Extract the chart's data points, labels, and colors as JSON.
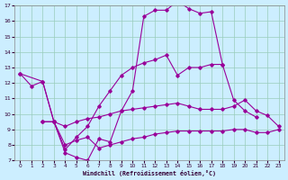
{
  "xlabel": "Windchill (Refroidissement éolien,°C)",
  "bg_color": "#cceeff",
  "grid_color": "#99ccbb",
  "line_color": "#990099",
  "xlim": [
    -0.5,
    23.5
  ],
  "ylim": [
    7,
    17
  ],
  "xticks": [
    0,
    1,
    2,
    3,
    4,
    5,
    6,
    7,
    8,
    9,
    10,
    11,
    12,
    13,
    14,
    15,
    16,
    17,
    18,
    19,
    20,
    21,
    22,
    23
  ],
  "yticks": [
    7,
    8,
    9,
    10,
    11,
    12,
    13,
    14,
    15,
    16,
    17
  ],
  "line1_x": [
    0,
    1,
    2,
    3,
    4,
    5,
    6,
    7,
    8,
    9,
    10,
    11,
    12,
    13,
    14,
    15,
    16,
    17,
    18,
    19,
    20,
    21
  ],
  "line1_y": [
    12.6,
    11.8,
    12.1,
    9.5,
    7.5,
    7.2,
    7.0,
    8.4,
    8.2,
    10.2,
    11.5,
    16.3,
    16.7,
    16.7,
    17.3,
    16.8,
    16.5,
    16.6,
    13.2,
    10.9,
    10.2,
    9.8
  ],
  "line2_x": [
    0,
    2,
    3,
    4,
    5,
    6,
    7,
    8,
    9,
    10,
    11,
    12,
    13,
    14,
    15,
    16,
    17,
    18
  ],
  "line2_y": [
    12.6,
    12.1,
    9.5,
    7.7,
    8.5,
    9.2,
    10.5,
    11.5,
    12.5,
    13.0,
    13.3,
    13.5,
    13.8,
    12.5,
    13.0,
    13.0,
    13.2,
    13.2
  ],
  "line3_x": [
    2,
    3,
    4,
    5,
    6,
    7,
    8,
    9,
    10,
    11,
    12,
    13,
    14,
    15,
    16,
    17,
    18,
    19,
    20,
    21,
    22,
    23
  ],
  "line3_y": [
    9.5,
    9.5,
    9.2,
    9.5,
    9.7,
    9.8,
    10.0,
    10.2,
    10.3,
    10.4,
    10.5,
    10.6,
    10.7,
    10.5,
    10.3,
    10.3,
    10.3,
    10.5,
    10.9,
    10.2,
    9.9,
    9.2
  ],
  "line4_x": [
    2,
    3,
    4,
    5,
    6,
    7,
    8,
    9,
    10,
    11,
    12,
    13,
    14,
    15,
    16,
    17,
    18,
    19,
    20,
    21,
    22,
    23
  ],
  "line4_y": [
    9.5,
    9.5,
    8.0,
    8.3,
    8.5,
    7.8,
    8.0,
    8.2,
    8.4,
    8.5,
    8.7,
    8.8,
    8.9,
    8.9,
    8.9,
    8.9,
    8.9,
    9.0,
    9.0,
    8.8,
    8.8,
    9.0
  ]
}
